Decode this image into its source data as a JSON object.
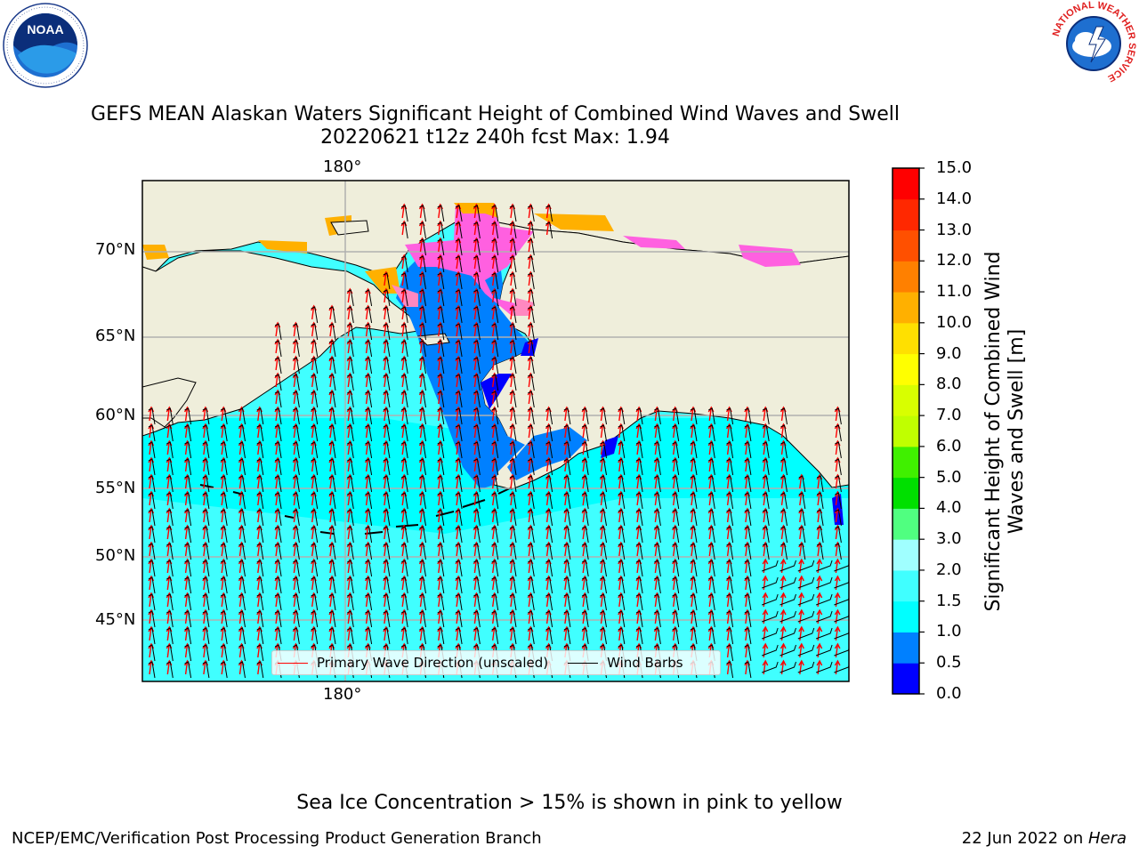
{
  "title": {
    "line1": "GEFS MEAN Alaskan Waters Significant Height of Combined Wind Waves and Swell",
    "line2": "20220621 t12z 240h fcst   Max: 1.94"
  },
  "map": {
    "lon_top_label": "180°",
    "lon_bottom_label": "180°",
    "lat_labels": [
      "70°N",
      "65°N",
      "60°N",
      "55°N",
      "50°N",
      "45°N"
    ],
    "land_color": "#efeedb",
    "grid_color": "#b0b0b0"
  },
  "legend": {
    "wave_label": "Primary Wave Direction (unscaled)",
    "wave_color": "#ff0000",
    "wind_label": "Wind Barbs",
    "wind_color": "#000000"
  },
  "colorbar": {
    "label": "Significant Height of Combined Wind Waves and Swell [m]",
    "ticks": [
      "15.0",
      "14.0",
      "13.0",
      "12.0",
      "11.0",
      "10.0",
      "9.0",
      "8.0",
      "7.0",
      "6.0",
      "5.0",
      "4.0",
      "3.0",
      "2.0",
      "1.5",
      "1.0",
      "0.5",
      "0.0"
    ],
    "colors": [
      "#0000ff",
      "#0080ff",
      "#00ffff",
      "#40ffff",
      "#a0ffff",
      "#50ff80",
      "#00e000",
      "#40f000",
      "#c0ff00",
      "#d8ff00",
      "#ffff00",
      "#ffe000",
      "#ffb000",
      "#ff8000",
      "#ff5000",
      "#ff2800",
      "#ff0000"
    ]
  },
  "note": "Sea Ice Concentration > 15% is shown in pink to yellow",
  "footer": {
    "left": "NCEP/EMC/Verification Post Processing Product Generation Branch",
    "right_date": "22 Jun 2022 on ",
    "right_host": "Hera"
  },
  "logos": {
    "noaa_text": "NOAA",
    "noaa_ring": "NATIONAL OCEANIC AND ATMOSPHERIC ADMINISTRATION · U.S. DEPARTMENT OF COMMERCE",
    "nws_ring": "NATIONAL WEATHER SERVICE"
  }
}
